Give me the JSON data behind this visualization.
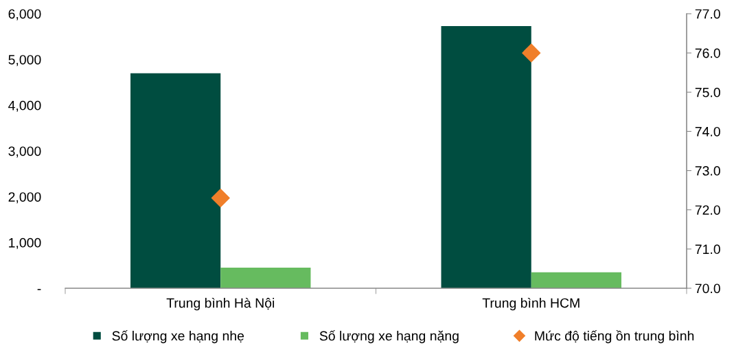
{
  "chart_data": {
    "type": "bar",
    "categories": [
      "Trung bình Hà Nội",
      "Trung bình HCM"
    ],
    "series": [
      {
        "name": "Số lượng xe hạng nhẹ",
        "color": "#004d40",
        "values": [
          4700,
          5730
        ]
      },
      {
        "name": "Số lượng xe hạng nặng",
        "color": "#66bb5f",
        "values": [
          450,
          350
        ]
      },
      {
        "name": "Mức độ tiếng ồn trung bình",
        "type": "scatter",
        "axis": "y2",
        "color": "#f07f2a",
        "marker": "diamond",
        "x": [
          "Trung bình Hà Nội",
          "Trung bình HCM"
        ],
        "values": [
          72.3,
          76.0
        ]
      }
    ],
    "ylim": [
      0,
      6000
    ],
    "yticks": [
      {
        "value": 0,
        "label": "-"
      },
      {
        "value": 1000,
        "label": "1,000"
      },
      {
        "value": 2000,
        "label": "2,000"
      },
      {
        "value": 3000,
        "label": "3,000"
      },
      {
        "value": 4000,
        "label": "4,000"
      },
      {
        "value": 5000,
        "label": "5,000"
      },
      {
        "value": 6000,
        "label": "6,000"
      }
    ],
    "y2lim": [
      70,
      77
    ],
    "y2ticks": [
      {
        "value": 70,
        "label": "70.0"
      },
      {
        "value": 71,
        "label": "71.0"
      },
      {
        "value": 72,
        "label": "72.0"
      },
      {
        "value": 73,
        "label": "73.0"
      },
      {
        "value": 74,
        "label": "74.0"
      },
      {
        "value": 75,
        "label": "75.0"
      },
      {
        "value": 76,
        "label": "76.0"
      },
      {
        "value": 77,
        "label": "77.0"
      }
    ],
    "grid": false,
    "legend": "bottom"
  }
}
